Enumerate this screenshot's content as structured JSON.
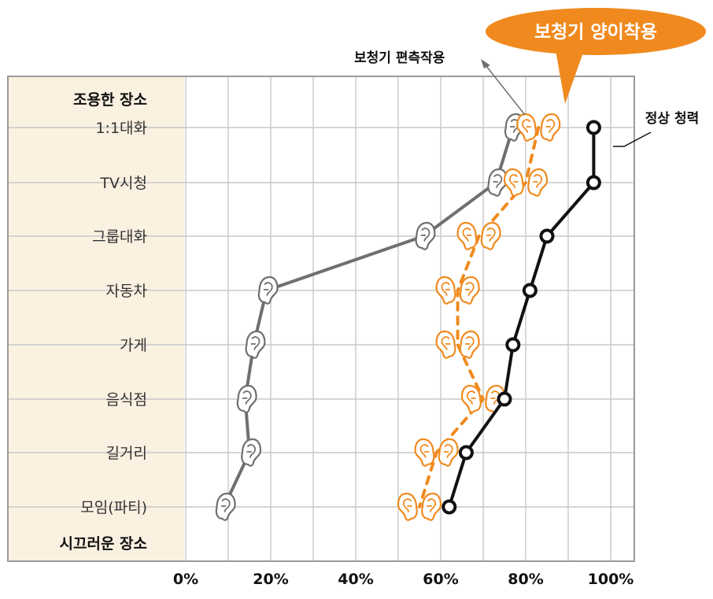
{
  "chart_data": {
    "type": "line",
    "y_categories": [
      "1:1대화",
      "TV시청",
      "그룹대화",
      "자동차",
      "가게",
      "음식점",
      "길거리",
      "모임(파티)"
    ],
    "side_labels": {
      "top": "조용한 장소",
      "bottom": "시끄러운 장소"
    },
    "x_ticks": [
      "0%",
      "20%",
      "40%",
      "60%",
      "80%",
      "100%"
    ],
    "xlim": [
      0,
      100
    ],
    "grid": true,
    "series": [
      {
        "name": "보청기 편측작용",
        "marker": "ear",
        "values": [
          77,
          73,
          56,
          19,
          16,
          14,
          15,
          9
        ]
      },
      {
        "name": "보청기 양이착용",
        "marker": "ear-pair",
        "values": [
          83,
          80,
          69,
          64,
          64,
          70,
          59,
          55
        ]
      },
      {
        "name": "정상 청력",
        "marker": "circle",
        "values": [
          96,
          96,
          85,
          81,
          77,
          75,
          66,
          62
        ]
      }
    ],
    "annotations": {
      "unilateral": "보청기 편측작용",
      "bilateral": "보청기 양이착용",
      "normal": "정상 청력"
    }
  },
  "colors": {
    "unilateral": "#6f6f6f",
    "bilateral": "#f08a1e",
    "normal": "#111111",
    "label_panel": "#fbf1e1",
    "grid": "#c8c8c8",
    "frame": "#9a9a9a"
  }
}
